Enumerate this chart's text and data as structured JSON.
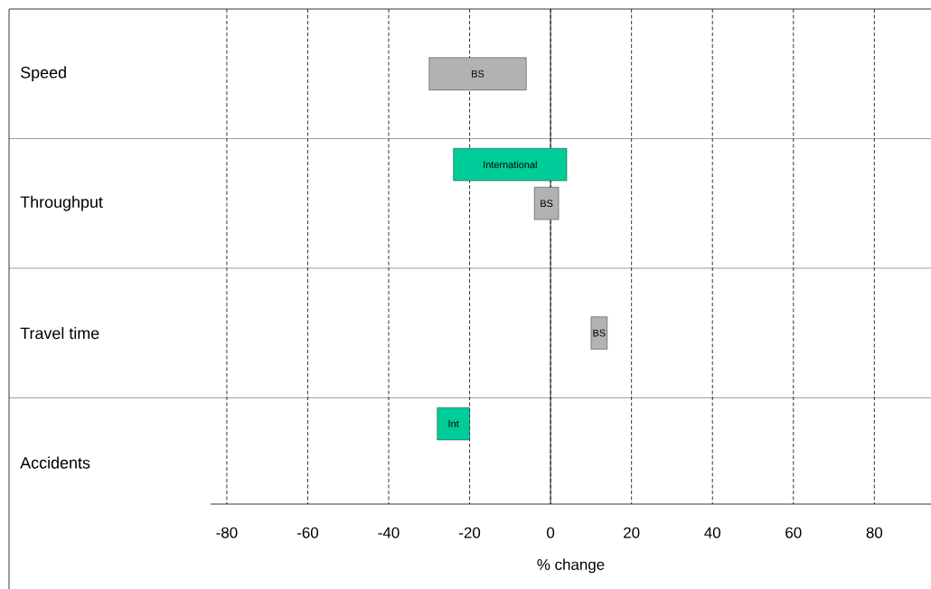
{
  "chart_data": {
    "type": "bar",
    "orientation": "horizontal",
    "xlabel": "% change",
    "categories": [
      "Speed",
      "Throughput",
      "Travel time",
      "Accidents"
    ],
    "xlim": [
      -84,
      94
    ],
    "xticks": [
      -80,
      -60,
      -40,
      -20,
      0,
      20,
      40,
      60,
      80
    ],
    "grid": "x",
    "series": [
      {
        "color": "#00cc99",
        "values": [
          null,
          28,
          null,
          8
        ],
        "base": [
          null,
          -24,
          null,
          -28
        ],
        "value_labels": [
          null,
          "International",
          null,
          "Int"
        ]
      },
      {
        "color": "#b2b2b2",
        "values": [
          24,
          6,
          4,
          null
        ],
        "base": [
          -30,
          -4,
          10,
          null
        ],
        "value_labels": [
          "BS",
          "BS",
          "BS",
          null
        ]
      }
    ]
  }
}
